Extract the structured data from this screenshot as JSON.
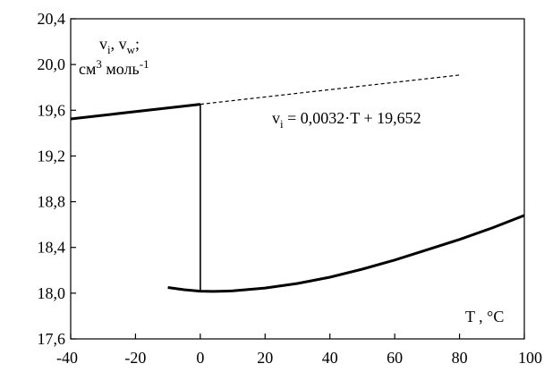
{
  "chart_data": {
    "type": "line",
    "xlim": [
      -40,
      100
    ],
    "ylim": [
      17.6,
      20.4
    ],
    "xticks": [
      -40,
      -20,
      0,
      20,
      40,
      60,
      80,
      100
    ],
    "xtick_labels": [
      "-40",
      "-20",
      "0",
      "20",
      "40",
      "60",
      "80",
      "100"
    ],
    "yticks": [
      17.6,
      18.0,
      18.4,
      18.8,
      19.2,
      19.6,
      20.0,
      20.4
    ],
    "ytick_labels": [
      "17,6",
      "18,0",
      "18,4",
      "18,8",
      "19,2",
      "19,6",
      "20,0",
      "20,4"
    ],
    "grid": false,
    "legend": "none",
    "ylabel": {
      "line1_a": "v",
      "line1_a_sub": "i",
      "line1_sep": ", v",
      "line1_b_sub": "w",
      "line1_end": ";",
      "line2_a": "см",
      "line2_sup": "3",
      "line2_b": " моль",
      "line2_sup2": "-1"
    },
    "xlabel": "T ,  °C",
    "equation": {
      "prefix": "v",
      "sub": "i",
      "rest": " = 0,0032·T + 19,652"
    },
    "series": [
      {
        "style": "solid-thick",
        "x": [
          -40,
          0
        ],
        "y": [
          19.524,
          19.652
        ]
      },
      {
        "style": "dashed-thin",
        "x": [
          0,
          80
        ],
        "y": [
          19.652,
          19.908
        ]
      },
      {
        "style": "solid-thin",
        "x": [
          0,
          0
        ],
        "y": [
          19.652,
          18.02
        ]
      },
      {
        "style": "solid-thick",
        "x": [
          -10,
          -5,
          0,
          4,
          10,
          20,
          30,
          40,
          50,
          60,
          70,
          80,
          90,
          100
        ],
        "y": [
          18.05,
          18.03,
          18.018,
          18.015,
          18.02,
          18.045,
          18.085,
          18.14,
          18.21,
          18.29,
          18.38,
          18.47,
          18.57,
          18.68
        ]
      }
    ],
    "colors": {
      "line": "#000000",
      "axis": "#000000",
      "background": "#ffffff"
    }
  }
}
